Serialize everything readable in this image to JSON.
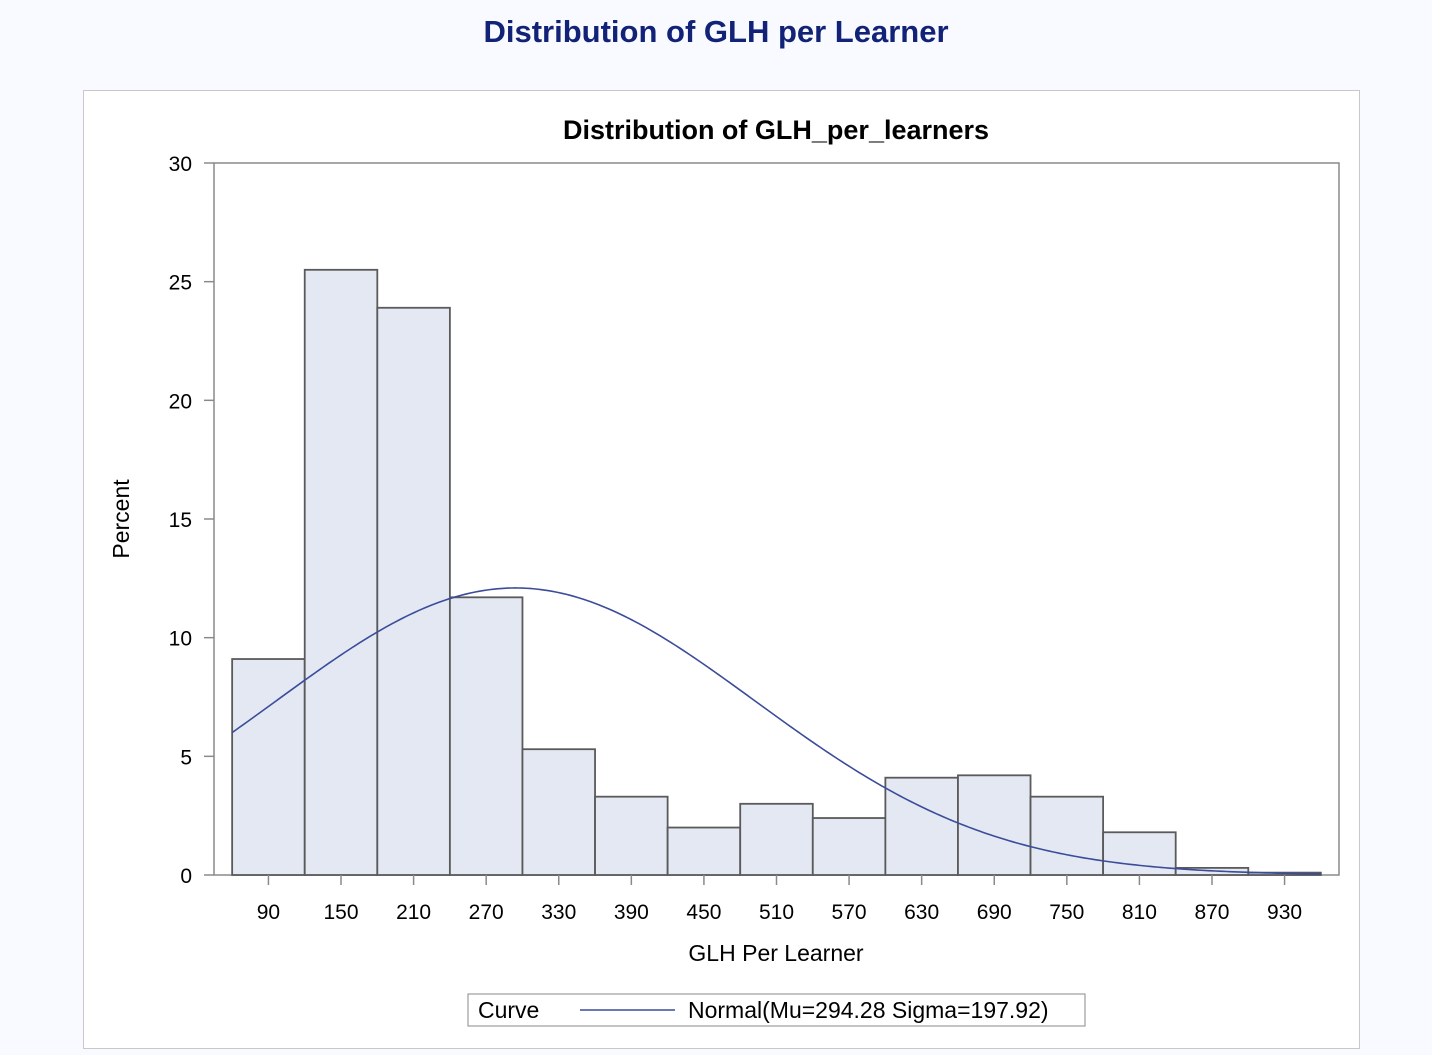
{
  "page": {
    "title": "Distribution of GLH per Learner"
  },
  "chart_data": {
    "type": "bar",
    "subtype": "histogram",
    "title": "Distribution of GLH_per_learners",
    "xlabel": "GLH Per Learner",
    "ylabel": "Percent",
    "x_ticks": [
      90,
      150,
      210,
      270,
      330,
      390,
      450,
      510,
      570,
      630,
      690,
      750,
      810,
      870,
      930
    ],
    "bin_width": 60,
    "xlim": [
      45,
      975
    ],
    "ylim": [
      0,
      30
    ],
    "y_ticks": [
      0,
      5,
      10,
      15,
      20,
      25,
      30
    ],
    "categories": [
      "90",
      "150",
      "210",
      "270",
      "330",
      "390",
      "450",
      "510",
      "570",
      "630",
      "690",
      "750",
      "810",
      "870",
      "930"
    ],
    "series": [
      {
        "type": "histogram",
        "values": [
          9.1,
          25.5,
          23.9,
          11.7,
          5.3,
          3.3,
          2.0,
          3.0,
          2.4,
          4.1,
          4.2,
          3.3,
          1.8,
          0.3,
          0.1
        ]
      },
      {
        "name": "Normal(Mu=294.28 Sigma=197.92)",
        "type": "line",
        "distribution": "normal",
        "mu": 294.28,
        "sigma": 197.92
      }
    ],
    "legend": {
      "title": "Curve",
      "entries": [
        "Normal(Mu=294.28 Sigma=197.92)"
      ],
      "position": "bottom"
    },
    "grid": false,
    "colors": {
      "bar_fill": "#e3e8f2",
      "bar_stroke": "#5a5a5a",
      "curve": "#3b4c9a",
      "title": "#112277"
    }
  }
}
